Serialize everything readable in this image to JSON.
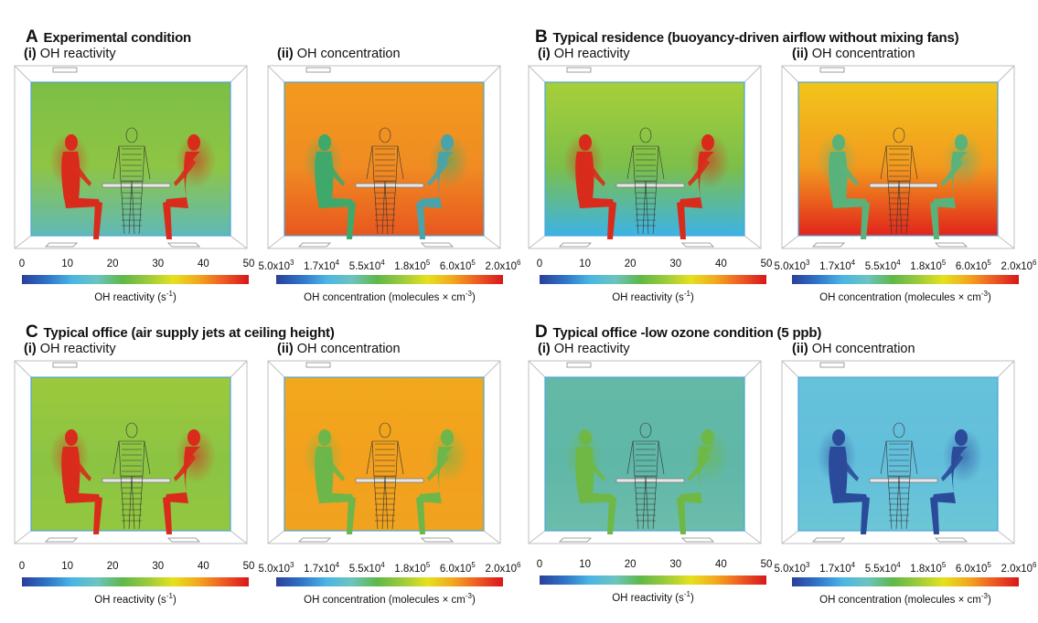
{
  "panels": {
    "A": {
      "letter": "A",
      "title": "Experimental condition"
    },
    "B": {
      "letter": "B",
      "title": "Typical residence (buoyancy-driven airflow without mixing fans)"
    },
    "C": {
      "letter": "C",
      "title": "Typical office (air supply jets at ceiling height)"
    },
    "D": {
      "letter": "D",
      "title": "Typical office -low ozone condition (5 ppb)"
    }
  },
  "subpanels": {
    "i": {
      "roman": "(i)",
      "label": "OH reactivity"
    },
    "ii": {
      "roman": "(ii)",
      "label": "OH concentration"
    }
  },
  "colorbars": {
    "reactivity": {
      "ticks": [
        "0",
        "10",
        "20",
        "30",
        "40",
        "50"
      ],
      "label_main": "OH reactivity (s",
      "label_sup": "-1",
      "label_end": ")"
    },
    "concentration": {
      "ticks": [
        {
          "base": "5.0x10",
          "exp": "3"
        },
        {
          "base": "1.7x10",
          "exp": "4"
        },
        {
          "base": "5.5x10",
          "exp": "4"
        },
        {
          "base": "1.8x10",
          "exp": "5"
        },
        {
          "base": "6.0x10",
          "exp": "5"
        },
        {
          "base": "2.0x10",
          "exp": "6"
        }
      ],
      "label_main": "OH concentration (molecules × cm",
      "label_sup": "-3",
      "label_end": ")"
    }
  },
  "colors": {
    "colormap": [
      "#2b3f9a",
      "#2f74c8",
      "#4bb6e4",
      "#6cc4c0",
      "#5fb848",
      "#9ccb3b",
      "#e5e11e",
      "#f3a81d",
      "#ee5a24",
      "#d8171b"
    ],
    "scenes": {
      "A_i": {
        "bg": "#7dbe46",
        "mid": "#8ec544",
        "bottom": "#5fb9b8",
        "left": "#d92b1c",
        "right": "#d92b1c"
      },
      "A_ii": {
        "bg": "#f29a1e",
        "mid": "#f08c22",
        "bottom": "#e8571f",
        "left": "#3ea96a",
        "right": "#4aa3a8"
      },
      "B_i": {
        "bg": "#a6cf3a",
        "mid": "#7dbf49",
        "bottom": "#3cb3e6",
        "left": "#d92b1c",
        "right": "#d92b1c"
      },
      "B_ii": {
        "bg": "#f2c51b",
        "mid": "#f29a1e",
        "bottom": "#e1251c",
        "left": "#59b27a",
        "right": "#59b27a"
      },
      "C_i": {
        "bg": "#9cc93c",
        "mid": "#8bc443",
        "bottom": "#93c73f",
        "left": "#d92b1c",
        "right": "#d92b1c"
      },
      "C_ii": {
        "bg": "#f2a91c",
        "mid": "#f2a01d",
        "bottom": "#f0a31e",
        "left": "#6cb64a",
        "right": "#6cb64a"
      },
      "D_i": {
        "bg": "#64b9a6",
        "mid": "#5fb7a8",
        "bottom": "#6cbcaa",
        "left": "#6fb845",
        "right": "#6fb845"
      },
      "D_ii": {
        "bg": "#66c2d9",
        "mid": "#62bfdc",
        "bottom": "#6cc6d6",
        "left": "#2b4a9a",
        "right": "#2b4a9a"
      }
    }
  }
}
